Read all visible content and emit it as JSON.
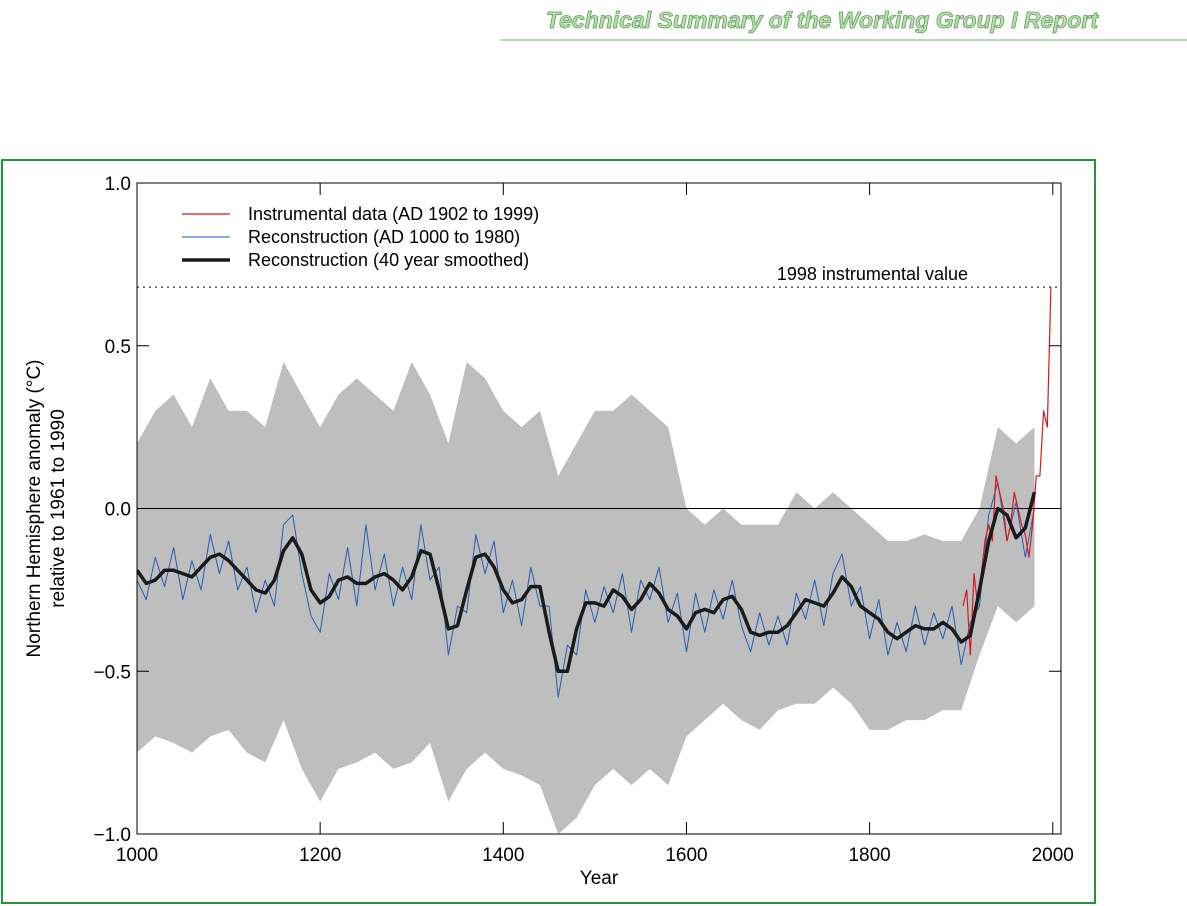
{
  "header": {
    "title": "Technical Summary of the Working Group I Report"
  },
  "chart_data": {
    "type": "line",
    "xlabel": "Year",
    "ylabel": [
      "Northern Hemisphere anomaly (°C)",
      "relative to 1961 to 1990"
    ],
    "xlim": [
      1000,
      2009
    ],
    "ylim": [
      -1,
      1
    ],
    "xticks": [
      1000,
      1200,
      1400,
      1600,
      1800,
      2000
    ],
    "yticks": [
      {
        "value": 1,
        "label": "1.0"
      },
      {
        "value": 0.5,
        "label": "0.5"
      },
      {
        "value": 0,
        "label": "0.0"
      },
      {
        "value": -0.5,
        "label": "−0.5"
      },
      {
        "value": -1,
        "label": "−1.0"
      }
    ],
    "legend": "upper left",
    "hlines": [
      {
        "value": 0,
        "style": "solid"
      },
      {
        "value": 0.68,
        "style": "dotted",
        "label": "1998 instrumental value"
      }
    ],
    "band": {
      "color": "#bebebe",
      "x": [
        1000,
        1020,
        1040,
        1060,
        1080,
        1100,
        1120,
        1140,
        1160,
        1180,
        1200,
        1220,
        1240,
        1260,
        1280,
        1300,
        1320,
        1340,
        1360,
        1380,
        1400,
        1420,
        1440,
        1460,
        1480,
        1500,
        1520,
        1540,
        1560,
        1580,
        1600,
        1620,
        1640,
        1660,
        1680,
        1700,
        1720,
        1740,
        1760,
        1780,
        1800,
        1820,
        1840,
        1860,
        1880,
        1900,
        1920,
        1940,
        1960,
        1980
      ],
      "upper": [
        0.2,
        0.3,
        0.35,
        0.25,
        0.4,
        0.3,
        0.3,
        0.25,
        0.45,
        0.35,
        0.25,
        0.35,
        0.4,
        0.35,
        0.3,
        0.45,
        0.35,
        0.2,
        0.45,
        0.4,
        0.3,
        0.25,
        0.3,
        0.1,
        0.2,
        0.3,
        0.3,
        0.35,
        0.3,
        0.25,
        0.0,
        -0.05,
        0.0,
        -0.05,
        -0.05,
        -0.05,
        0.05,
        0.0,
        0.05,
        0.0,
        -0.05,
        -0.1,
        -0.1,
        -0.08,
        -0.1,
        -0.1,
        0.0,
        0.25,
        0.2,
        0.25
      ],
      "lower": [
        -0.75,
        -0.7,
        -0.72,
        -0.75,
        -0.7,
        -0.68,
        -0.75,
        -0.78,
        -0.65,
        -0.8,
        -0.9,
        -0.8,
        -0.78,
        -0.75,
        -0.8,
        -0.78,
        -0.72,
        -0.9,
        -0.8,
        -0.75,
        -0.8,
        -0.82,
        -0.85,
        -1.0,
        -0.95,
        -0.85,
        -0.8,
        -0.85,
        -0.8,
        -0.85,
        -0.7,
        -0.65,
        -0.6,
        -0.65,
        -0.68,
        -0.62,
        -0.6,
        -0.6,
        -0.55,
        -0.6,
        -0.68,
        -0.68,
        -0.65,
        -0.65,
        -0.62,
        -0.62,
        -0.45,
        -0.3,
        -0.35,
        -0.3
      ]
    },
    "series": [
      {
        "name": "Instrumental data (AD 1902 to 1999)",
        "color": "#d7191c",
        "width": 1.2,
        "x": [
          1902,
          1906,
          1910,
          1914,
          1918,
          1922,
          1926,
          1930,
          1934,
          1938,
          1942,
          1946,
          1950,
          1954,
          1958,
          1962,
          1966,
          1970,
          1974,
          1978,
          1982,
          1986,
          1990,
          1994,
          1998
        ],
        "values": [
          -0.3,
          -0.25,
          -0.45,
          -0.2,
          -0.3,
          -0.2,
          -0.1,
          -0.05,
          -0.1,
          0.1,
          0.05,
          0.0,
          -0.1,
          -0.05,
          0.05,
          0.0,
          -0.05,
          -0.08,
          -0.15,
          -0.05,
          0.1,
          0.1,
          0.3,
          0.25,
          0.68
        ]
      },
      {
        "name": "Reconstruction (AD 1000 to 1980)",
        "color": "#1f5fb4",
        "width": 1,
        "x": [
          1000,
          1010,
          1020,
          1030,
          1040,
          1050,
          1060,
          1070,
          1080,
          1090,
          1100,
          1110,
          1120,
          1130,
          1140,
          1150,
          1160,
          1170,
          1180,
          1190,
          1200,
          1210,
          1220,
          1230,
          1240,
          1250,
          1260,
          1270,
          1280,
          1290,
          1300,
          1310,
          1320,
          1330,
          1340,
          1350,
          1360,
          1370,
          1380,
          1390,
          1400,
          1410,
          1420,
          1430,
          1440,
          1450,
          1460,
          1470,
          1480,
          1490,
          1500,
          1510,
          1520,
          1530,
          1540,
          1550,
          1560,
          1570,
          1580,
          1590,
          1600,
          1610,
          1620,
          1630,
          1640,
          1650,
          1660,
          1670,
          1680,
          1690,
          1700,
          1710,
          1720,
          1730,
          1740,
          1750,
          1760,
          1770,
          1780,
          1790,
          1800,
          1810,
          1820,
          1830,
          1840,
          1850,
          1860,
          1870,
          1880,
          1890,
          1900,
          1910,
          1920,
          1930,
          1940,
          1950,
          1960,
          1970,
          1980
        ],
        "values": [
          -0.22,
          -0.28,
          -0.15,
          -0.24,
          -0.12,
          -0.28,
          -0.16,
          -0.25,
          -0.08,
          -0.2,
          -0.1,
          -0.25,
          -0.18,
          -0.32,
          -0.22,
          -0.3,
          -0.05,
          -0.02,
          -0.2,
          -0.33,
          -0.38,
          -0.2,
          -0.28,
          -0.12,
          -0.3,
          -0.05,
          -0.25,
          -0.14,
          -0.3,
          -0.18,
          -0.28,
          -0.05,
          -0.22,
          -0.18,
          -0.45,
          -0.3,
          -0.32,
          -0.08,
          -0.2,
          -0.1,
          -0.32,
          -0.22,
          -0.36,
          -0.18,
          -0.3,
          -0.3,
          -0.58,
          -0.42,
          -0.45,
          -0.25,
          -0.35,
          -0.24,
          -0.32,
          -0.2,
          -0.38,
          -0.22,
          -0.28,
          -0.18,
          -0.35,
          -0.26,
          -0.44,
          -0.26,
          -0.38,
          -0.25,
          -0.34,
          -0.22,
          -0.36,
          -0.44,
          -0.32,
          -0.42,
          -0.33,
          -0.42,
          -0.26,
          -0.34,
          -0.22,
          -0.36,
          -0.2,
          -0.14,
          -0.3,
          -0.24,
          -0.4,
          -0.28,
          -0.45,
          -0.35,
          -0.44,
          -0.3,
          -0.42,
          -0.32,
          -0.4,
          -0.3,
          -0.48,
          -0.35,
          -0.3,
          -0.02,
          0.08,
          -0.1,
          0.02,
          -0.15,
          0.0
        ]
      },
      {
        "name": "Reconstruction (40 year smoothed)",
        "color": "#1a1a1a",
        "width": 3.5,
        "x": [
          1000,
          1010,
          1020,
          1030,
          1040,
          1050,
          1060,
          1070,
          1080,
          1090,
          1100,
          1110,
          1120,
          1130,
          1140,
          1150,
          1160,
          1170,
          1180,
          1190,
          1200,
          1210,
          1220,
          1230,
          1240,
          1250,
          1260,
          1270,
          1280,
          1290,
          1300,
          1310,
          1320,
          1330,
          1340,
          1350,
          1360,
          1370,
          1380,
          1390,
          1400,
          1410,
          1420,
          1430,
          1440,
          1450,
          1460,
          1470,
          1480,
          1490,
          1500,
          1510,
          1520,
          1530,
          1540,
          1550,
          1560,
          1570,
          1580,
          1590,
          1600,
          1610,
          1620,
          1630,
          1640,
          1650,
          1660,
          1670,
          1680,
          1690,
          1700,
          1710,
          1720,
          1730,
          1740,
          1750,
          1760,
          1770,
          1780,
          1790,
          1800,
          1810,
          1820,
          1830,
          1840,
          1850,
          1860,
          1870,
          1880,
          1890,
          1900,
          1910,
          1920,
          1930,
          1940,
          1950,
          1960,
          1970,
          1980
        ],
        "values": [
          -0.19,
          -0.23,
          -0.22,
          -0.19,
          -0.19,
          -0.2,
          -0.21,
          -0.18,
          -0.15,
          -0.14,
          -0.16,
          -0.19,
          -0.22,
          -0.25,
          -0.26,
          -0.22,
          -0.13,
          -0.09,
          -0.14,
          -0.25,
          -0.29,
          -0.27,
          -0.22,
          -0.21,
          -0.23,
          -0.23,
          -0.21,
          -0.2,
          -0.22,
          -0.25,
          -0.21,
          -0.13,
          -0.14,
          -0.25,
          -0.37,
          -0.36,
          -0.25,
          -0.15,
          -0.14,
          -0.18,
          -0.25,
          -0.29,
          -0.28,
          -0.24,
          -0.24,
          -0.38,
          -0.5,
          -0.5,
          -0.37,
          -0.29,
          -0.29,
          -0.3,
          -0.25,
          -0.27,
          -0.31,
          -0.28,
          -0.23,
          -0.26,
          -0.31,
          -0.33,
          -0.37,
          -0.32,
          -0.31,
          -0.32,
          -0.28,
          -0.27,
          -0.31,
          -0.38,
          -0.39,
          -0.38,
          -0.38,
          -0.36,
          -0.32,
          -0.28,
          -0.29,
          -0.3,
          -0.26,
          -0.21,
          -0.24,
          -0.3,
          -0.32,
          -0.34,
          -0.38,
          -0.4,
          -0.38,
          -0.36,
          -0.37,
          -0.37,
          -0.35,
          -0.37,
          -0.41,
          -0.39,
          -0.25,
          -0.1,
          0.0,
          -0.02,
          -0.09,
          -0.06,
          0.05
        ]
      }
    ]
  }
}
